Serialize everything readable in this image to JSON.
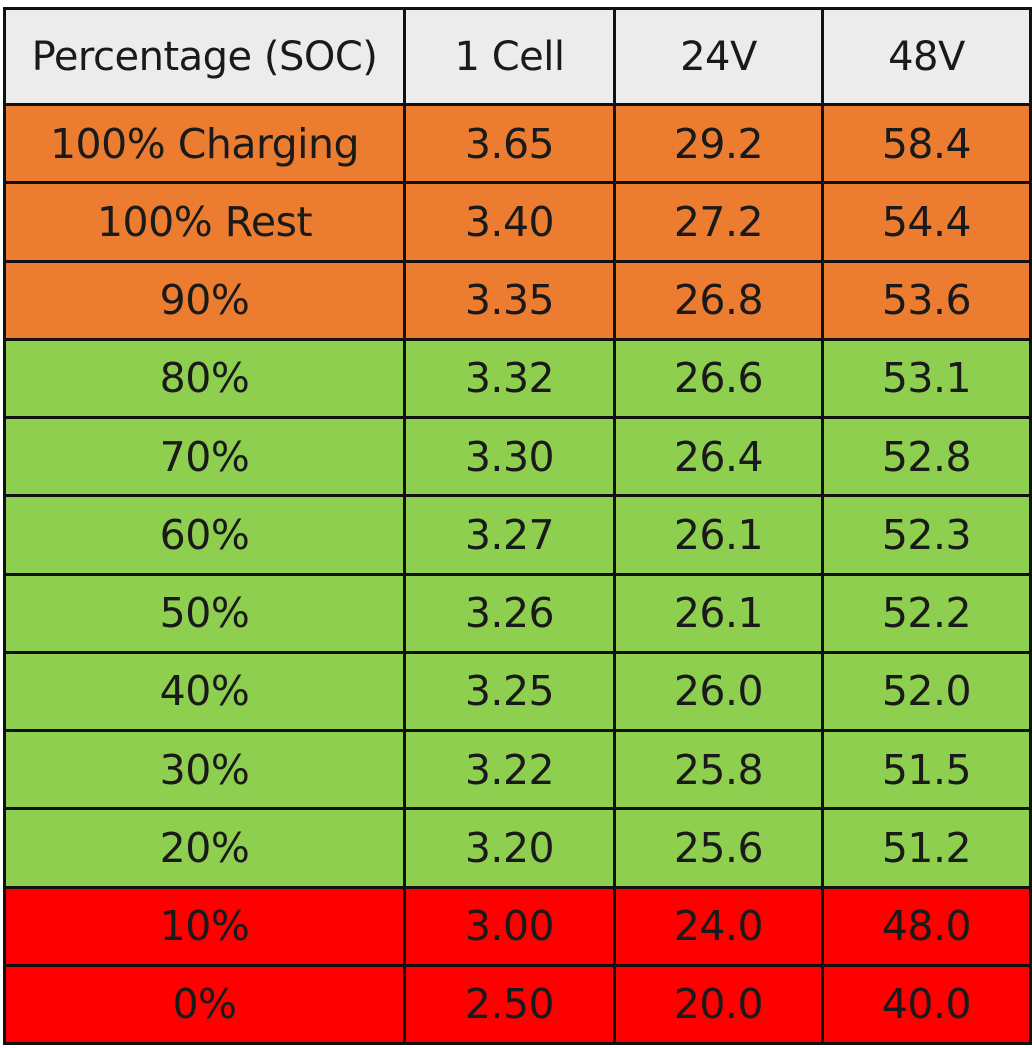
{
  "table": {
    "headers": [
      "Percentage (SOC)",
      "1 Cell",
      "24V",
      "48V"
    ],
    "colors": {
      "header": "#ececec",
      "orange": "#ec7c30",
      "green": "#8fcf4f",
      "red": "#fe0000"
    },
    "rows": [
      {
        "soc": "100% Charging",
        "cell": "3.65",
        "v24": "29.2",
        "v48": "58.4",
        "color": "orange"
      },
      {
        "soc": "100% Rest",
        "cell": "3.40",
        "v24": "27.2",
        "v48": "54.4",
        "color": "orange"
      },
      {
        "soc": "90%",
        "cell": "3.35",
        "v24": "26.8",
        "v48": "53.6",
        "color": "orange"
      },
      {
        "soc": "80%",
        "cell": "3.32",
        "v24": "26.6",
        "v48": "53.1",
        "color": "green"
      },
      {
        "soc": "70%",
        "cell": "3.30",
        "v24": "26.4",
        "v48": "52.8",
        "color": "green"
      },
      {
        "soc": "60%",
        "cell": "3.27",
        "v24": "26.1",
        "v48": "52.3",
        "color": "green"
      },
      {
        "soc": "50%",
        "cell": "3.26",
        "v24": "26.1",
        "v48": "52.2",
        "color": "green"
      },
      {
        "soc": "40%",
        "cell": "3.25",
        "v24": "26.0",
        "v48": "52.0",
        "color": "green"
      },
      {
        "soc": "30%",
        "cell": "3.22",
        "v24": "25.8",
        "v48": "51.5",
        "color": "green"
      },
      {
        "soc": "20%",
        "cell": "3.20",
        "v24": "25.6",
        "v48": "51.2",
        "color": "green"
      },
      {
        "soc": "10%",
        "cell": "3.00",
        "v24": "24.0",
        "v48": "48.0",
        "color": "red"
      },
      {
        "soc": "0%",
        "cell": "2.50",
        "v24": "20.0",
        "v48": "40.0",
        "color": "red"
      }
    ]
  }
}
